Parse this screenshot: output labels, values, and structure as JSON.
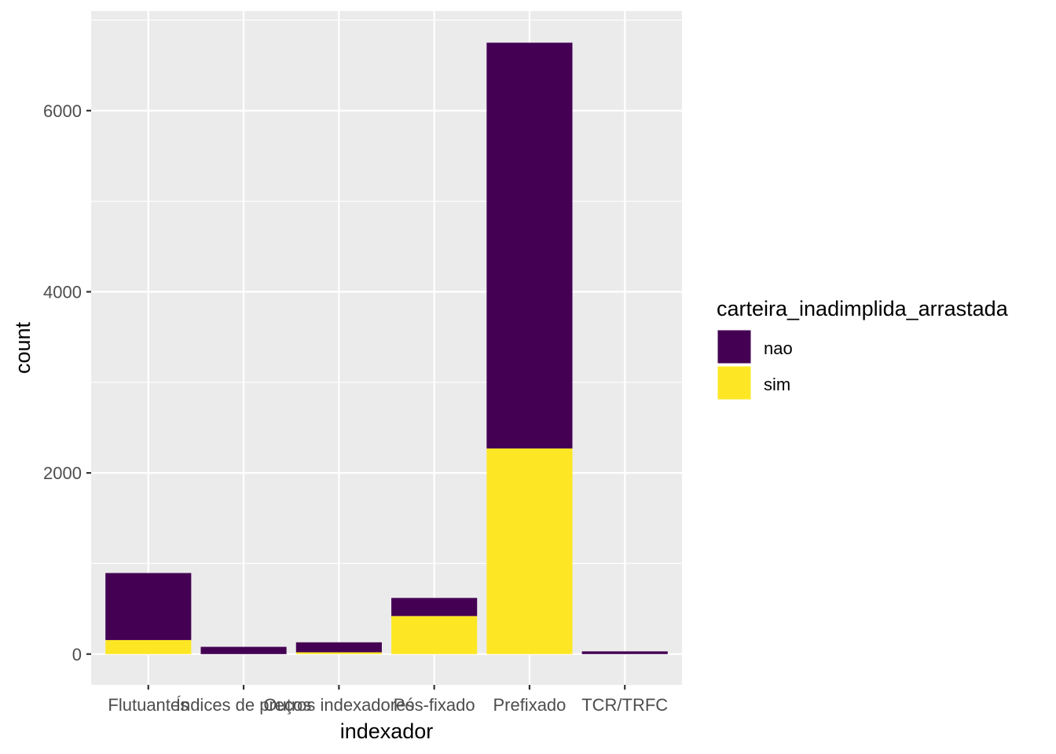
{
  "chart_data": {
    "type": "bar",
    "stacked": true,
    "categories": [
      "Flutuantes",
      "Índices de preços",
      "Outros indexadores",
      "Pós-fixado",
      "Prefixado",
      "TCR/TRFC"
    ],
    "series": [
      {
        "name": "nao",
        "color": "#440154",
        "values": [
          740,
          80,
          110,
          200,
          4480,
          30
        ]
      },
      {
        "name": "sim",
        "color": "#FDE725",
        "values": [
          155,
          0,
          20,
          420,
          2270,
          0
        ]
      }
    ],
    "xlabel": "indexador",
    "ylabel": "count",
    "ylim": [
      -340,
      7100
    ],
    "yticks": [
      0,
      2000,
      4000,
      6000
    ],
    "yticks_minor": [
      1000,
      3000,
      5000,
      7000
    ],
    "grid": true,
    "legend": {
      "title": "carteira_inadimplida_arrastada",
      "position": "right"
    },
    "panel_background": "#EBEBEB"
  }
}
